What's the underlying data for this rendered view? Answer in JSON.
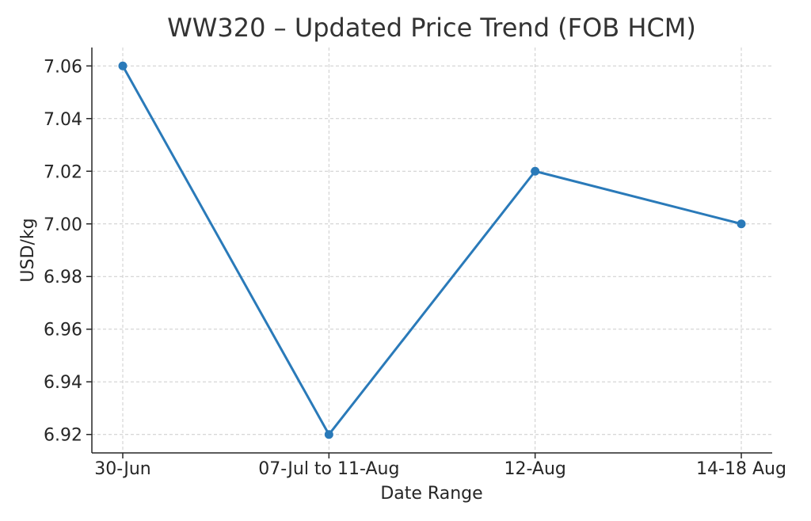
{
  "chart_data": {
    "type": "line",
    "title": "WW320 – Updated Price Trend (FOB HCM)",
    "xlabel": "Date Range",
    "ylabel": "USD/kg",
    "categories": [
      "30-Jun",
      "07-Jul to 11-Aug",
      "12-Aug",
      "14-18 Aug"
    ],
    "series": [
      {
        "values": [
          7.06,
          6.92,
          7.02,
          7.0
        ],
        "color": "#2a7ab9"
      }
    ],
    "yticks": [
      "6.92",
      "6.94",
      "6.96",
      "6.98",
      "7.00",
      "7.02",
      "7.04",
      "7.06"
    ],
    "ylim": [
      6.913,
      7.067
    ],
    "grid": true,
    "legend": "none"
  }
}
